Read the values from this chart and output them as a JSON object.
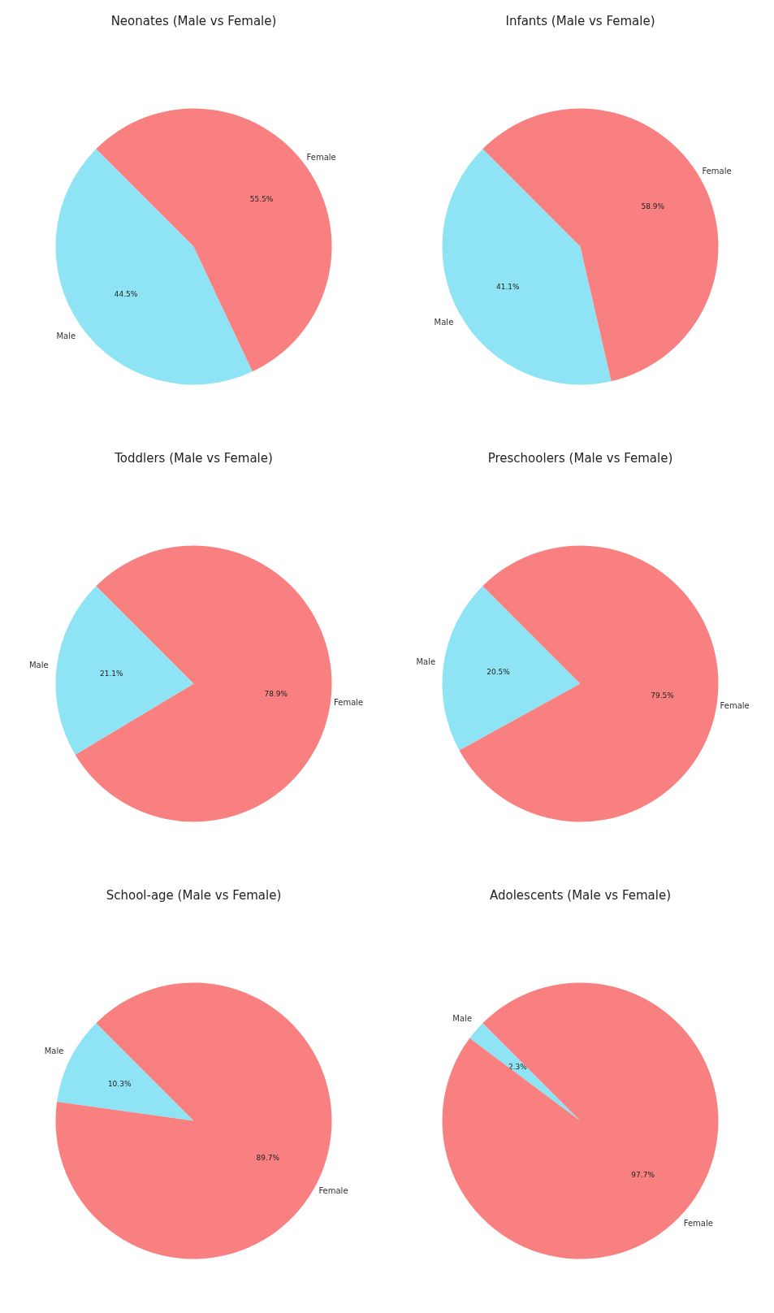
{
  "chart_data": [
    {
      "type": "pie",
      "title": "Neonates (Male vs Female)",
      "categories": [
        "Male",
        "Female"
      ],
      "values": [
        44.5,
        55.5
      ],
      "colors": [
        "#8ee4f4",
        "#f88080"
      ],
      "value_labels": [
        "44.5%",
        "55.5%"
      ]
    },
    {
      "type": "pie",
      "title": "Infants (Male vs Female)",
      "categories": [
        "Male",
        "Female"
      ],
      "values": [
        41.1,
        58.9
      ],
      "colors": [
        "#8ee4f4",
        "#f88080"
      ],
      "value_labels": [
        "41.1%",
        "58.9%"
      ]
    },
    {
      "type": "pie",
      "title": "Toddlers (Male vs Female)",
      "categories": [
        "Male",
        "Female"
      ],
      "values": [
        21.1,
        78.9
      ],
      "colors": [
        "#8ee4f4",
        "#f88080"
      ],
      "value_labels": [
        "21.1%",
        "78.9%"
      ]
    },
    {
      "type": "pie",
      "title": "Preschoolers (Male vs Female)",
      "categories": [
        "Male",
        "Female"
      ],
      "values": [
        20.5,
        79.5
      ],
      "colors": [
        "#8ee4f4",
        "#f88080"
      ],
      "value_labels": [
        "20.5%",
        "79.5%"
      ]
    },
    {
      "type": "pie",
      "title": "School-age (Male vs Female)",
      "categories": [
        "Male",
        "Female"
      ],
      "values": [
        10.3,
        89.7
      ],
      "colors": [
        "#8ee4f4",
        "#f88080"
      ],
      "value_labels": [
        "10.3%",
        "89.7%"
      ]
    },
    {
      "type": "pie",
      "title": "Adolescents (Male vs Female)",
      "categories": [
        "Male",
        "Female"
      ],
      "values": [
        2.3,
        97.7
      ],
      "colors": [
        "#8ee4f4",
        "#f88080"
      ],
      "value_labels": [
        "2.3%",
        "97.7%"
      ]
    }
  ]
}
